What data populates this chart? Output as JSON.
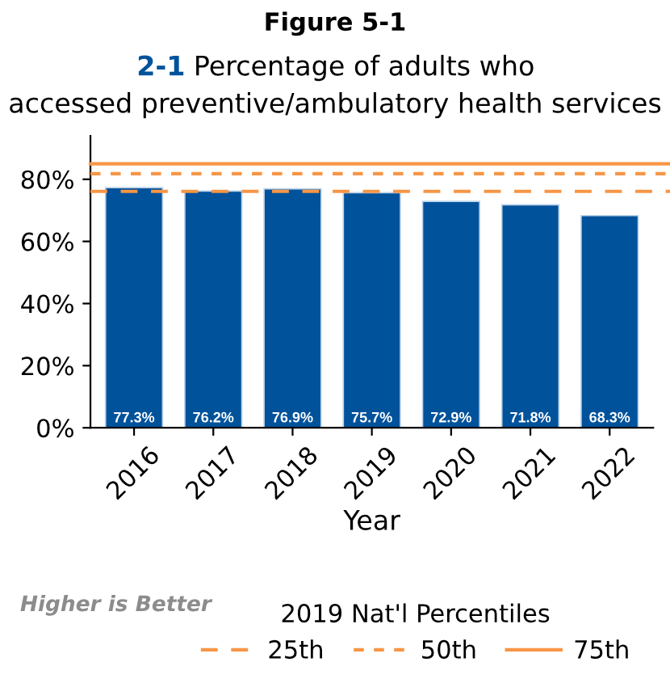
{
  "chart_data": {
    "type": "bar",
    "title": "Figure 5-1",
    "subtitle": "2-1 Percentage of adults who accessed preventive/ambulatory health services",
    "xlabel": "Year",
    "categories": [
      "2016",
      "2017",
      "2018",
      "2019",
      "2020",
      "2021",
      "2022"
    ],
    "values": [
      77.3,
      76.2,
      76.9,
      75.7,
      72.9,
      71.8,
      68.3
    ],
    "value_labels": [
      "77.3%",
      "76.2%",
      "76.9%",
      "75.7%",
      "72.9%",
      "71.8%",
      "68.3%"
    ],
    "color": "#00529b",
    "ylim": [
      0,
      94
    ],
    "yticks": [
      {
        "value": 0,
        "label": "0%"
      },
      {
        "value": 20,
        "label": "20%"
      },
      {
        "value": 40,
        "label": "40%"
      },
      {
        "value": 60,
        "label": "60%"
      },
      {
        "value": 80,
        "label": "80%"
      }
    ],
    "ref_lines": [
      {
        "axis": "y",
        "value": 76.1,
        "label": "25th",
        "color": "#f79646",
        "line_style": "dashed"
      },
      {
        "axis": "y",
        "value": 81.8,
        "label": "50th",
        "color": "#f79646",
        "line_style": "dotted"
      },
      {
        "axis": "y",
        "value": 85.0,
        "label": "75th",
        "color": "#f79646",
        "line_style": "solid"
      }
    ],
    "legend_title": "2019 Nat'l Percentiles",
    "legend": "bottom",
    "annotations": [
      "Higher is Better"
    ],
    "grid": false
  }
}
